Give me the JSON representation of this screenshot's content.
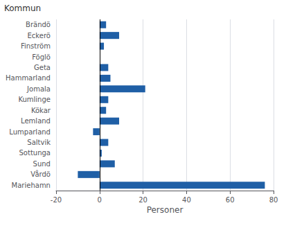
{
  "chart_data": {
    "type": "bar",
    "orientation": "horizontal",
    "xlabel": "Personer",
    "ylabel": "Kommun",
    "categories": [
      "Brändö",
      "Eckerö",
      "Finström",
      "Föglö",
      "Geta",
      "Hammarland",
      "Jomala",
      "Kumlinge",
      "Kökar",
      "Lemland",
      "Lumparland",
      "Saltvik",
      "Sottunga",
      "Sund",
      "Vårdö",
      "Mariehamn"
    ],
    "values": [
      3,
      9,
      2,
      0,
      4,
      5,
      21,
      4,
      3,
      9,
      -3,
      4,
      1,
      7,
      -10,
      76
    ],
    "color": "#1f5fa6",
    "xlim": [
      -20,
      80
    ],
    "xticks": [
      -20,
      0,
      20,
      40,
      60,
      80
    ],
    "grid": true
  }
}
